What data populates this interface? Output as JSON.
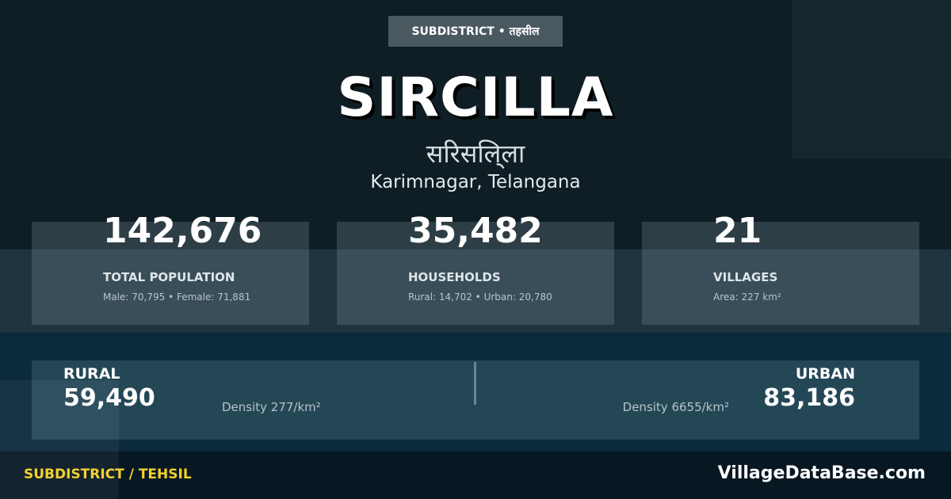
{
  "badge": "SUBDISTRICT • तहसील",
  "title": "SIRCILLA",
  "title_hindi": "सरिसलि्ला",
  "location": "Karimnagar, Telangana",
  "stats": [
    {
      "value": "142,676",
      "label": "TOTAL POPULATION",
      "sub": "Male: 70,795 • Female: 71,881"
    },
    {
      "value": "35,482",
      "label": "HOUSEHOLDS",
      "sub": "Rural: 14,702 • Urban: 20,780"
    },
    {
      "value": "21",
      "label": "VILLAGES",
      "sub": "Area: 227 km²"
    }
  ],
  "rural": {
    "label": "RURAL",
    "value": "59,490",
    "density": "Density 277/km²"
  },
  "urban": {
    "label": "URBAN",
    "value": "83,186",
    "density": "Density 6655/km²"
  },
  "footer": {
    "category": "SUBDISTRICT / TEHSIL",
    "site": "VillageDataBase.com"
  },
  "colors": {
    "accent": "#f2d22e",
    "background": "#0f1d25"
  }
}
